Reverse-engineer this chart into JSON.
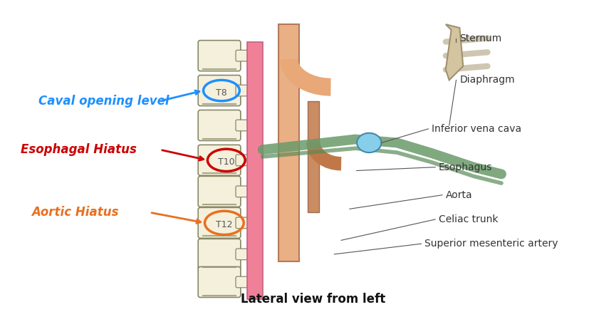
{
  "title": "Lateral view from left",
  "background_color": "#ffffff",
  "labels": {
    "caval": "Caval opening level",
    "esophageal": "Esophagal Hiatus",
    "aortic": "Aortic Hiatus",
    "sternum": "Sternum",
    "diaphragm": "Diaphragm",
    "ivc": "Inferior vena cava",
    "esophagus": "Esophagus",
    "aorta": "Aorta",
    "celiac": "Celiac trunk",
    "sma": "Superior mesenteric artery",
    "T8": "T8",
    "T10": "T10",
    "T12": "T12"
  },
  "colors": {
    "caval_text": "#1E90FF",
    "caval_oval": "#1E90FF",
    "caval_arrow": "#1E90FF",
    "esoph_text": "#CC0000",
    "esoph_oval": "#CC0000",
    "esoph_arrow": "#CC0000",
    "aortic_text": "#E87020",
    "aortic_oval": "#E87020",
    "aortic_arrow": "#E87020",
    "vertebra_fill": "#F5F0DC",
    "vertebra_edge": "#888866",
    "disk_fill": "#CCCCAA",
    "spine_pink": "#F08098",
    "aorta_fill": "#E8A878",
    "ivc_fill": "#D4956A",
    "esophagus_right": "#D4956A",
    "diaphragm_fill": "#8FBC8F",
    "sternum_fill": "#D4C5A0",
    "label_color": "#333333",
    "title_color": "#111111"
  },
  "figsize": [
    8.27,
    4.38
  ],
  "dpi": 100
}
